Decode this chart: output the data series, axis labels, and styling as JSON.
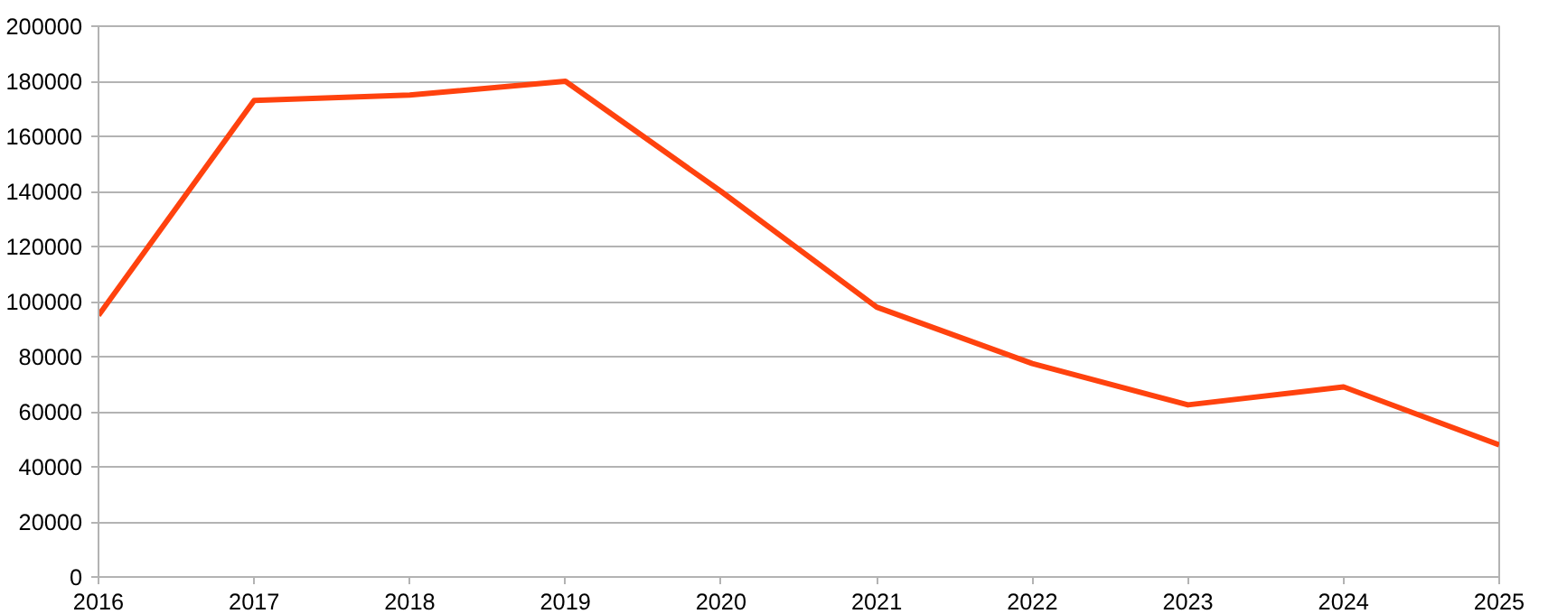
{
  "chart_data": {
    "type": "line",
    "x": [
      2016,
      2017,
      2018,
      2019,
      2020,
      2021,
      2022,
      2023,
      2024,
      2025
    ],
    "series": [
      {
        "color": "#ff420e",
        "values": [
          95000,
          173000,
          175000,
          180000,
          140000,
          98000,
          77500,
          62500,
          69000,
          48000
        ]
      }
    ],
    "xlim": [
      2016,
      2025
    ],
    "xticks": [
      2016,
      2017,
      2018,
      2019,
      2020,
      2021,
      2022,
      2023,
      2024,
      2025
    ],
    "ylim": [
      0,
      200000
    ],
    "yticks": [
      0,
      20000,
      40000,
      60000,
      80000,
      100000,
      120000,
      140000,
      160000,
      180000,
      200000
    ],
    "grid": "y",
    "marker": "none",
    "line_style": "solid"
  }
}
